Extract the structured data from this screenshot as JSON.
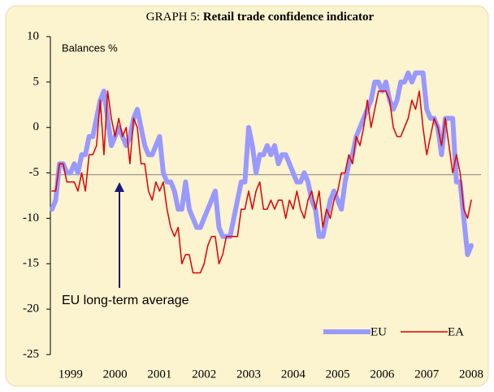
{
  "chart_data": {
    "type": "line",
    "title_label": "GRAPH 5:",
    "title": "Retail trade confidence indicator",
    "y_label": "Balances %",
    "annotation": "EU long-term average",
    "long_term_average": -5.2,
    "categories": [
      null,
      null,
      null,
      null,
      null,
      "1999",
      null,
      null,
      null,
      null,
      null,
      null,
      null,
      null,
      null,
      null,
      null,
      "2000",
      null,
      null,
      null,
      null,
      null,
      null,
      null,
      null,
      null,
      null,
      null,
      "2001",
      null,
      null,
      null,
      null,
      null,
      null,
      null,
      null,
      null,
      null,
      null,
      "2002",
      null,
      null,
      null,
      null,
      null,
      null,
      null,
      null,
      null,
      null,
      null,
      "2003",
      null,
      null,
      null,
      null,
      null,
      null,
      null,
      null,
      null,
      null,
      null,
      "2004",
      null,
      null,
      null,
      null,
      null,
      null,
      null,
      null,
      null,
      null,
      null,
      "2005",
      null,
      null,
      null,
      null,
      null,
      null,
      null,
      null,
      null,
      null,
      null,
      "2006",
      null,
      null,
      null,
      null,
      null,
      null,
      null,
      null,
      null,
      null,
      null,
      "2007",
      null,
      null,
      null,
      null,
      null,
      null,
      null,
      null,
      null,
      null,
      null,
      "2008"
    ],
    "series": [
      {
        "name": "EU",
        "color": "#9999ff",
        "values": [
          -9,
          -8,
          -4,
          -4,
          -5,
          -5,
          -4,
          -5,
          -3,
          -3,
          -1,
          -1,
          1,
          3,
          4,
          1,
          -2,
          -1,
          0,
          -1,
          -2,
          -1,
          1,
          2,
          0,
          -2,
          -3,
          -3,
          -2,
          -1,
          -5,
          -6,
          -6,
          -7,
          -9,
          -9,
          -6,
          -9,
          -10,
          -11,
          -11,
          -10,
          -9,
          -8,
          -7,
          -11,
          -12,
          -12,
          -12,
          -10,
          -8,
          -6,
          -6,
          0,
          -2,
          -5,
          -3,
          -3,
          -2,
          -3,
          -2,
          -4,
          -3,
          -3,
          -4,
          -5,
          -6,
          -6,
          -5,
          -6,
          -8,
          -9,
          -12,
          -12,
          -10,
          -8,
          -7,
          -8,
          -9,
          -6,
          -4,
          -3,
          -1,
          0,
          1,
          2,
          3,
          5,
          5,
          4,
          5,
          3,
          2,
          3,
          5,
          5,
          6,
          5,
          6,
          6,
          6,
          2,
          1,
          1,
          0,
          -3,
          1,
          1,
          1,
          -6,
          -6,
          -10,
          -14,
          -13
        ]
      },
      {
        "name": "EA",
        "color": "#e00000",
        "values": [
          -7,
          -7,
          -4,
          -4,
          -6,
          -6,
          -6,
          -7,
          -5,
          -7,
          -3,
          -3,
          -2,
          3,
          -3,
          4,
          1,
          -1,
          1,
          -1,
          0,
          -4,
          1,
          0,
          -4,
          -4,
          -7,
          -8,
          -6,
          -7,
          -6,
          -9,
          -11,
          -12,
          -11,
          -15,
          -14,
          -14,
          -16,
          -16,
          -16,
          -15,
          -13,
          -12,
          -12,
          -15,
          -14,
          -12,
          -12,
          -12,
          -12,
          -9,
          -9,
          -7,
          -9,
          -7,
          -6,
          -9,
          -9,
          -8,
          -9,
          -8,
          -8,
          -10,
          -8,
          -9,
          -7,
          -9,
          -10,
          -8,
          -7,
          -9,
          -7,
          -11,
          -9,
          -10,
          -8,
          -7,
          -5,
          -5,
          -3,
          -4,
          -1,
          -2,
          0,
          3,
          0,
          2,
          4,
          4,
          4,
          3,
          0,
          -1,
          -1,
          0,
          1,
          3,
          2,
          4,
          0,
          -3,
          -1,
          1,
          0,
          -2,
          1,
          -2,
          -5,
          -3,
          -5,
          -9,
          -10,
          -8
        ]
      }
    ],
    "ylim": [
      -25,
      10
    ],
    "yticks": [
      -25,
      -20,
      -15,
      -10,
      -5,
      0,
      5,
      10
    ],
    "legend": "lower right"
  }
}
